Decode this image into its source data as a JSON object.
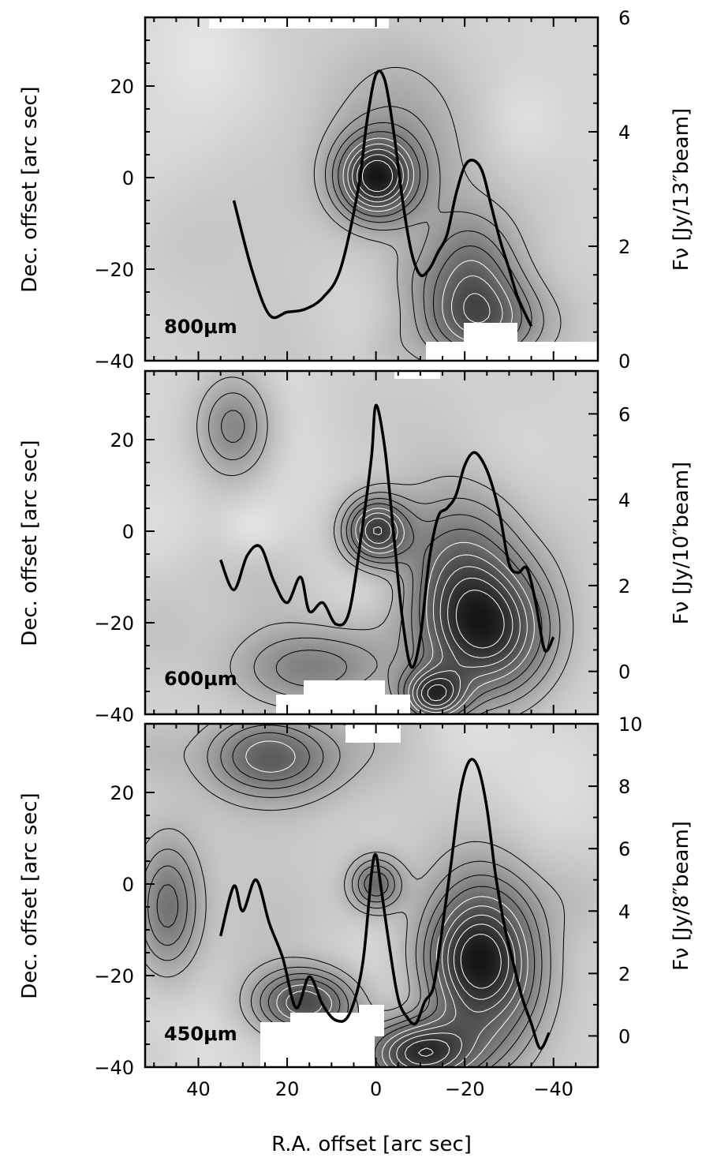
{
  "chart_data": [
    {
      "type": "contour-map",
      "band_label": "800μm",
      "xlabel": "",
      "ylabel": "Dec. offset [arc sec]",
      "y2label": "Fν [Jy/13″beam]",
      "xlim": [
        52,
        -50
      ],
      "ylim": [
        -40,
        35
      ],
      "y2lim": [
        0,
        6
      ],
      "xticks": [
        40,
        20,
        0,
        -20,
        -40
      ],
      "yticks": [
        20,
        0,
        -20,
        -40
      ],
      "y2ticks": [
        0,
        2,
        4,
        6
      ],
      "peaks": [
        {
          "x": 0,
          "y": 0,
          "amp": 1.0,
          "sx": 6,
          "sy": 6
        },
        {
          "x": -22,
          "y": -22,
          "amp": 0.55,
          "sx": 8,
          "sy": 10
        },
        {
          "x": -5,
          "y": 10,
          "amp": 0.25,
          "sx": 12,
          "sy": 14
        },
        {
          "x": -25,
          "y": -32,
          "amp": 0.4,
          "sx": 10,
          "sy": 6
        }
      ],
      "profile": {
        "x": [
          32,
          28,
          24,
          20,
          16,
          12,
          8,
          4,
          2,
          0,
          -2,
          -4,
          -6,
          -8,
          -10,
          -12,
          -14,
          -16,
          -18,
          -20,
          -22,
          -24,
          -26,
          -28,
          -30,
          -32,
          -35
        ],
        "y": [
          2.8,
          1.6,
          0.8,
          0.85,
          0.9,
          1.1,
          1.6,
          3.0,
          4.2,
          5.0,
          4.9,
          4.0,
          2.8,
          1.9,
          1.5,
          1.6,
          1.9,
          2.2,
          2.9,
          3.4,
          3.5,
          3.3,
          2.7,
          2.1,
          1.6,
          1.1,
          0.6
        ]
      }
    },
    {
      "type": "contour-map",
      "band_label": "600μm",
      "xlabel": "",
      "ylabel": "Dec. offset [arc sec]",
      "y2label": "Fν [Jy/10″beam]",
      "xlim": [
        52,
        -50
      ],
      "ylim": [
        -40,
        35
      ],
      "y2lim": [
        -1,
        7
      ],
      "xticks": [
        40,
        20,
        0,
        -20,
        -40
      ],
      "yticks": [
        20,
        0,
        -20,
        -40
      ],
      "y2ticks": [
        0,
        2,
        4,
        6
      ],
      "peaks": [
        {
          "x": 0,
          "y": 0,
          "amp": 0.85,
          "sx": 5,
          "sy": 5
        },
        {
          "x": -25,
          "y": -22,
          "amp": 0.9,
          "sx": 10,
          "sy": 10
        },
        {
          "x": -13,
          "y": -36,
          "amp": 0.85,
          "sx": 5,
          "sy": 4
        },
        {
          "x": -18,
          "y": -8,
          "amp": 0.5,
          "sx": 10,
          "sy": 12
        },
        {
          "x": 32,
          "y": 23,
          "amp": 0.45,
          "sx": 6,
          "sy": 8
        },
        {
          "x": 14,
          "y": -30,
          "amp": 0.45,
          "sx": 12,
          "sy": 6
        }
      ],
      "profile": {
        "x": [
          35,
          32,
          29,
          26,
          23,
          20,
          17,
          15,
          12,
          9,
          6,
          3,
          1,
          0,
          -2,
          -4,
          -6,
          -8,
          -10,
          -12,
          -14,
          -16,
          -18,
          -20,
          -22,
          -24,
          -26,
          -28,
          -30,
          -32,
          -34,
          -36,
          -38,
          -40
        ],
        "y": [
          2.6,
          1.9,
          2.7,
          2.9,
          2.1,
          1.6,
          2.2,
          1.4,
          1.6,
          1.1,
          1.4,
          3.4,
          5.0,
          6.2,
          5.2,
          3.2,
          1.2,
          0.1,
          0.8,
          2.6,
          3.6,
          3.8,
          4.1,
          4.8,
          5.1,
          4.9,
          4.4,
          3.6,
          2.5,
          2.3,
          2.4,
          1.6,
          0.5,
          0.8
        ]
      }
    },
    {
      "type": "contour-map",
      "band_label": "450μm",
      "xlabel": "R.A. offset [arc sec]",
      "ylabel": "Dec. offset [arc sec]",
      "y2label": "Fν [Jy/8″beam]",
      "xlim": [
        52,
        -50
      ],
      "ylim": [
        -40,
        35
      ],
      "y2lim": [
        -1,
        10
      ],
      "xticks": [
        40,
        20,
        0,
        -20,
        -40
      ],
      "yticks": [
        20,
        0,
        -20,
        -40
      ],
      "y2ticks": [
        0,
        2,
        4,
        6,
        8,
        10
      ],
      "peaks": [
        {
          "x": -24,
          "y": -18,
          "amp": 1.0,
          "sx": 9,
          "sy": 13
        },
        {
          "x": 16,
          "y": -26,
          "amp": 0.7,
          "sx": 8,
          "sy": 5
        },
        {
          "x": -10,
          "y": -37,
          "amp": 0.85,
          "sx": 8,
          "sy": 5
        },
        {
          "x": 23,
          "y": 28,
          "amp": 0.6,
          "sx": 10,
          "sy": 6
        },
        {
          "x": 0,
          "y": 0,
          "amp": 0.5,
          "sx": 4,
          "sy": 4
        },
        {
          "x": 47,
          "y": -5,
          "amp": 0.45,
          "sx": 5,
          "sy": 10
        }
      ],
      "profile": {
        "x": [
          35,
          32,
          30,
          27,
          24,
          21,
          18,
          15,
          12,
          9,
          6,
          3,
          1,
          0,
          -1,
          -3,
          -5,
          -7,
          -9,
          -11,
          -13,
          -15,
          -17,
          -19,
          -21,
          -23,
          -25,
          -27,
          -29,
          -31,
          -33,
          -35,
          -37,
          -39
        ],
        "y": [
          3.2,
          4.8,
          4.0,
          5.0,
          3.6,
          2.5,
          0.9,
          1.9,
          1.0,
          0.5,
          0.7,
          2.3,
          5.2,
          5.8,
          4.9,
          2.9,
          1.2,
          0.6,
          0.4,
          1.1,
          1.6,
          3.5,
          5.6,
          7.8,
          8.8,
          8.6,
          7.3,
          5.1,
          3.5,
          2.3,
          1.2,
          0.4,
          -0.4,
          0.1
        ]
      }
    }
  ]
}
